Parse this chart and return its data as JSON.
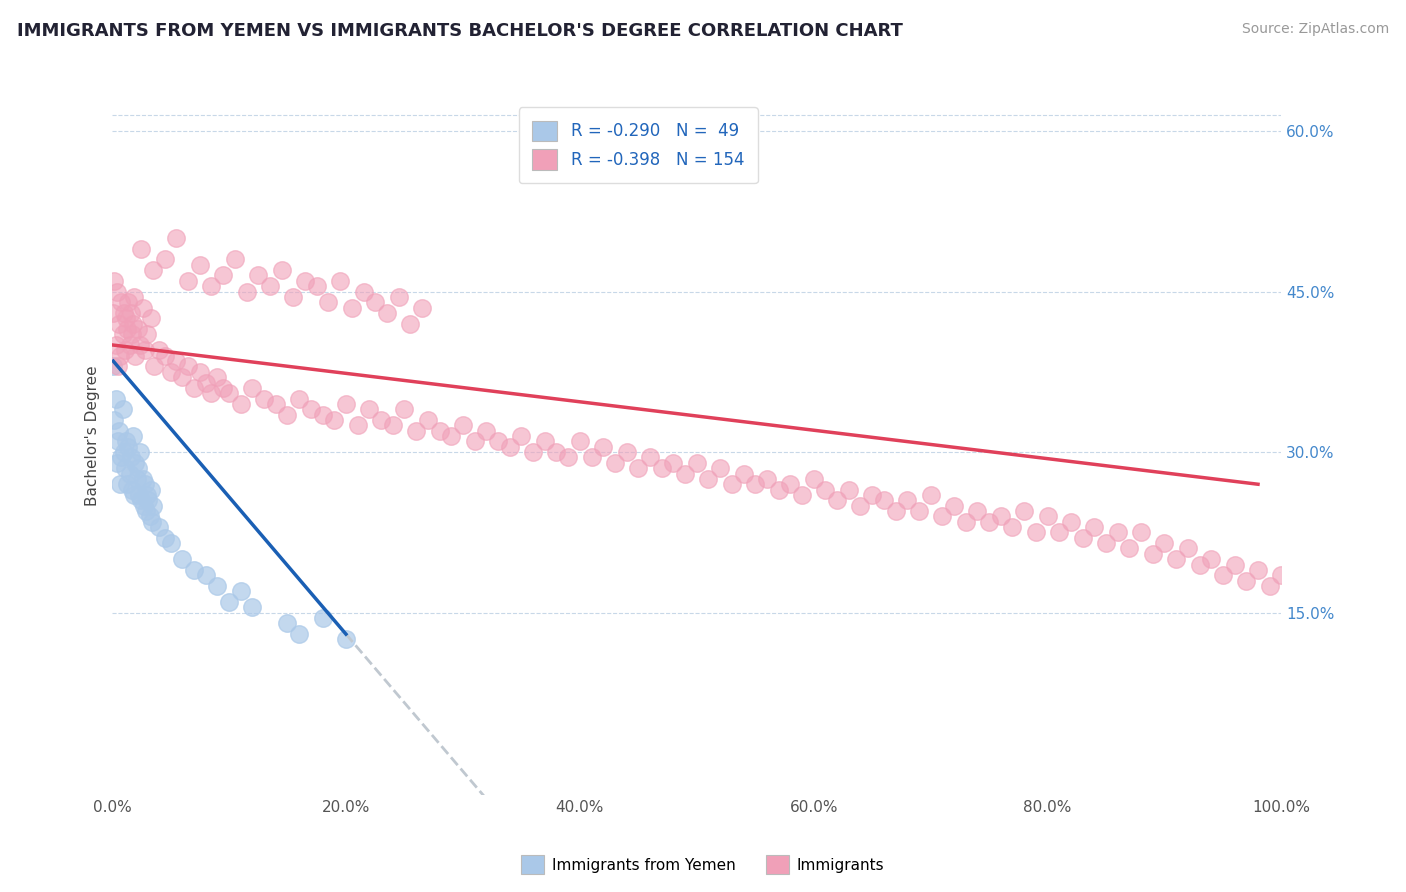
{
  "title": "IMMIGRANTS FROM YEMEN VS IMMIGRANTS BACHELOR'S DEGREE CORRELATION CHART",
  "source_text": "Source: ZipAtlas.com",
  "ylabel": "Bachelor's Degree",
  "legend_label_1": "Immigrants from Yemen",
  "legend_label_2": "Immigrants",
  "r1": -0.29,
  "n1": 49,
  "r2": -0.398,
  "n2": 154,
  "color_blue": "#aac8e8",
  "color_pink": "#f0a0b8",
  "trendline_blue": "#1a5fb4",
  "trendline_pink": "#e0405a",
  "trendline_dashed_color": "#c0c8d0",
  "background": "#ffffff",
  "grid_color": "#c8d8e8",
  "xlim": [
    0.0,
    1.0
  ],
  "ylim": [
    -0.02,
    0.65
  ],
  "xticks": [
    0.0,
    0.2,
    0.4,
    0.6,
    0.8,
    1.0
  ],
  "xtick_labels": [
    "0.0%",
    "20.0%",
    "40.0%",
    "60.0%",
    "80.0%",
    "100.0%"
  ],
  "yticks_right": [
    0.15,
    0.3,
    0.45,
    0.6
  ],
  "ytick_labels_right": [
    "15.0%",
    "30.0%",
    "45.0%",
    "60.0%"
  ],
  "blue_x": [
    0.001,
    0.002,
    0.003,
    0.004,
    0.005,
    0.006,
    0.007,
    0.008,
    0.009,
    0.01,
    0.011,
    0.012,
    0.013,
    0.014,
    0.015,
    0.016,
    0.017,
    0.018,
    0.019,
    0.02,
    0.021,
    0.022,
    0.023,
    0.024,
    0.025,
    0.026,
    0.027,
    0.028,
    0.029,
    0.03,
    0.031,
    0.032,
    0.033,
    0.034,
    0.035,
    0.04,
    0.045,
    0.05,
    0.06,
    0.07,
    0.08,
    0.09,
    0.1,
    0.11,
    0.12,
    0.15,
    0.16,
    0.18,
    0.2
  ],
  "blue_y": [
    0.38,
    0.33,
    0.35,
    0.29,
    0.31,
    0.32,
    0.27,
    0.295,
    0.34,
    0.3,
    0.285,
    0.31,
    0.27,
    0.305,
    0.28,
    0.295,
    0.265,
    0.315,
    0.26,
    0.29,
    0.275,
    0.285,
    0.26,
    0.3,
    0.255,
    0.275,
    0.25,
    0.27,
    0.245,
    0.26,
    0.255,
    0.24,
    0.265,
    0.235,
    0.25,
    0.23,
    0.22,
    0.215,
    0.2,
    0.19,
    0.185,
    0.175,
    0.16,
    0.17,
    0.155,
    0.14,
    0.13,
    0.145,
    0.125
  ],
  "pink_x": [
    0.001,
    0.002,
    0.003,
    0.004,
    0.005,
    0.006,
    0.007,
    0.008,
    0.009,
    0.01,
    0.011,
    0.012,
    0.013,
    0.014,
    0.015,
    0.016,
    0.017,
    0.018,
    0.019,
    0.02,
    0.022,
    0.024,
    0.026,
    0.028,
    0.03,
    0.033,
    0.036,
    0.04,
    0.045,
    0.05,
    0.055,
    0.06,
    0.065,
    0.07,
    0.075,
    0.08,
    0.085,
    0.09,
    0.095,
    0.1,
    0.11,
    0.12,
    0.13,
    0.14,
    0.15,
    0.16,
    0.17,
    0.18,
    0.19,
    0.2,
    0.21,
    0.22,
    0.23,
    0.24,
    0.25,
    0.26,
    0.27,
    0.28,
    0.29,
    0.3,
    0.31,
    0.32,
    0.33,
    0.34,
    0.35,
    0.36,
    0.37,
    0.38,
    0.39,
    0.4,
    0.41,
    0.42,
    0.43,
    0.44,
    0.45,
    0.46,
    0.47,
    0.48,
    0.49,
    0.5,
    0.51,
    0.52,
    0.53,
    0.54,
    0.55,
    0.56,
    0.57,
    0.58,
    0.59,
    0.6,
    0.61,
    0.62,
    0.63,
    0.64,
    0.65,
    0.66,
    0.67,
    0.68,
    0.69,
    0.7,
    0.71,
    0.72,
    0.73,
    0.74,
    0.75,
    0.76,
    0.77,
    0.78,
    0.79,
    0.8,
    0.81,
    0.82,
    0.83,
    0.84,
    0.85,
    0.86,
    0.87,
    0.88,
    0.89,
    0.9,
    0.91,
    0.92,
    0.93,
    0.94,
    0.95,
    0.96,
    0.97,
    0.98,
    0.99,
    1.0,
    0.025,
    0.035,
    0.045,
    0.055,
    0.065,
    0.075,
    0.085,
    0.095,
    0.105,
    0.115,
    0.125,
    0.135,
    0.145,
    0.155,
    0.165,
    0.175,
    0.185,
    0.195,
    0.205,
    0.215,
    0.225,
    0.235,
    0.245,
    0.255,
    0.265
  ],
  "pink_y": [
    0.43,
    0.46,
    0.4,
    0.45,
    0.38,
    0.42,
    0.39,
    0.44,
    0.41,
    0.43,
    0.395,
    0.425,
    0.415,
    0.44,
    0.4,
    0.43,
    0.41,
    0.42,
    0.445,
    0.39,
    0.415,
    0.4,
    0.435,
    0.395,
    0.41,
    0.425,
    0.38,
    0.395,
    0.39,
    0.375,
    0.385,
    0.37,
    0.38,
    0.36,
    0.375,
    0.365,
    0.355,
    0.37,
    0.36,
    0.355,
    0.345,
    0.36,
    0.35,
    0.345,
    0.335,
    0.35,
    0.34,
    0.335,
    0.33,
    0.345,
    0.325,
    0.34,
    0.33,
    0.325,
    0.34,
    0.32,
    0.33,
    0.32,
    0.315,
    0.325,
    0.31,
    0.32,
    0.31,
    0.305,
    0.315,
    0.3,
    0.31,
    0.3,
    0.295,
    0.31,
    0.295,
    0.305,
    0.29,
    0.3,
    0.285,
    0.295,
    0.285,
    0.29,
    0.28,
    0.29,
    0.275,
    0.285,
    0.27,
    0.28,
    0.27,
    0.275,
    0.265,
    0.27,
    0.26,
    0.275,
    0.265,
    0.255,
    0.265,
    0.25,
    0.26,
    0.255,
    0.245,
    0.255,
    0.245,
    0.26,
    0.24,
    0.25,
    0.235,
    0.245,
    0.235,
    0.24,
    0.23,
    0.245,
    0.225,
    0.24,
    0.225,
    0.235,
    0.22,
    0.23,
    0.215,
    0.225,
    0.21,
    0.225,
    0.205,
    0.215,
    0.2,
    0.21,
    0.195,
    0.2,
    0.185,
    0.195,
    0.18,
    0.19,
    0.175,
    0.185,
    0.49,
    0.47,
    0.48,
    0.5,
    0.46,
    0.475,
    0.455,
    0.465,
    0.48,
    0.45,
    0.465,
    0.455,
    0.47,
    0.445,
    0.46,
    0.455,
    0.44,
    0.46,
    0.435,
    0.45,
    0.44,
    0.43,
    0.445,
    0.42,
    0.435
  ]
}
